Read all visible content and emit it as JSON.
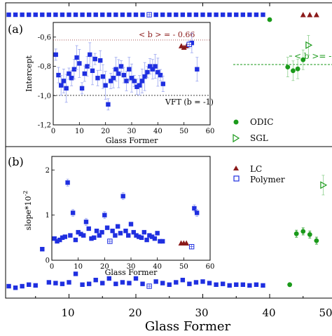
{
  "figure": {
    "xlabel": "Glass Former",
    "x_ticks": [
      "10",
      "20",
      "30",
      "40",
      "50"
    ],
    "colors": {
      "blue": "#1f2fe0",
      "green": "#1a9a1a",
      "darkred": "#8b1a1a",
      "black": "#000000",
      "lightblue_err": "#9aa5f0",
      "lightgreen_err": "#8fd18f"
    }
  },
  "chart_data": [
    {
      "id": "main-a",
      "type": "scatter",
      "panel_label": "(a)",
      "hline_label": "< b >= -",
      "legend": [
        {
          "name": "ODIC",
          "marker": "circle",
          "color": "#1a9a1a"
        },
        {
          "name": "SGL",
          "marker": "triangle-right-open",
          "color": "#1a9a1a"
        }
      ],
      "series": [
        {
          "name": "blue",
          "points": [
            [
              1,
              0
            ],
            [
              2,
              0
            ],
            [
              3,
              0
            ],
            [
              4,
              0
            ],
            [
              5,
              0
            ],
            [
              6,
              0
            ],
            [
              7,
              0
            ],
            [
              8,
              0
            ],
            [
              9,
              0
            ],
            [
              10,
              0
            ],
            [
              11,
              0
            ],
            [
              12,
              0
            ],
            [
              13,
              0
            ],
            [
              14,
              0
            ],
            [
              15,
              0
            ],
            [
              16,
              0
            ],
            [
              17,
              0
            ],
            [
              18,
              0
            ],
            [
              19,
              0
            ],
            [
              20,
              0
            ],
            [
              21,
              0
            ],
            [
              23,
              0
            ],
            [
              24,
              0
            ],
            [
              25,
              0
            ],
            [
              26,
              0
            ],
            [
              27,
              0
            ],
            [
              28,
              0
            ],
            [
              29,
              0
            ],
            [
              30,
              0
            ],
            [
              31,
              0
            ],
            [
              32,
              0
            ],
            [
              33,
              0
            ],
            [
              34,
              0
            ],
            [
              35,
              0
            ],
            [
              36,
              0
            ],
            [
              37,
              0
            ],
            [
              38,
              0
            ],
            [
              39,
              0
            ]
          ]
        },
        {
          "name": "polymer",
          "points": [
            [
              22,
              0
            ]
          ]
        },
        {
          "name": "lc",
          "points": [
            [
              45,
              0
            ],
            [
              46,
              0
            ],
            [
              47,
              0
            ]
          ]
        },
        {
          "name": "odic",
          "points": [
            [
              40,
              -0.6
            ],
            [
              42.7,
              -0.86
            ],
            [
              43.5,
              -0.88
            ],
            [
              44.2,
              -0.87
            ],
            [
              45,
              -0.82
            ]
          ]
        },
        {
          "name": "sgl",
          "points": [
            [
              45.8,
              -0.74
            ]
          ]
        }
      ]
    },
    {
      "id": "inset-a",
      "type": "scatter",
      "xlabel": "Glass Former",
      "ylabel": "Intercept",
      "xlim": [
        0,
        60
      ],
      "ylim": [
        -1.2,
        -0.5
      ],
      "x_ticks": [
        0,
        10,
        20,
        30,
        40,
        50,
        60
      ],
      "y_ticks": [
        "-0,6",
        "-0,8",
        "-1,0",
        "-1,2"
      ],
      "y_tick_values": [
        -0.6,
        -0.8,
        -1.0,
        -1.2
      ],
      "hlines": [
        {
          "y": -0.66,
          "label": "< b > = - 0.66",
          "color": "#8b1a1a"
        },
        {
          "y": -1.0,
          "label": "VFT (b = -1)",
          "color": "#000000"
        }
      ],
      "series": [
        {
          "name": "blue",
          "points": [
            [
              1,
              -0.72
            ],
            [
              2,
              -0.86
            ],
            [
              3,
              -0.93
            ],
            [
              4,
              -0.9
            ],
            [
              5,
              -0.95
            ],
            [
              6,
              -0.85
            ],
            [
              7,
              -0.88
            ],
            [
              8,
              -0.82
            ],
            [
              9,
              -0.74
            ],
            [
              10,
              -0.78
            ],
            [
              11,
              -0.95
            ],
            [
              12,
              -0.85
            ],
            [
              13,
              -0.8
            ],
            [
              14,
              -0.72
            ],
            [
              15,
              -0.83
            ],
            [
              16,
              -0.75
            ],
            [
              17,
              -0.88
            ],
            [
              18,
              -0.76
            ],
            [
              19,
              -0.87
            ],
            [
              20,
              -0.93
            ],
            [
              21,
              -1.06
            ],
            [
              22,
              -0.9
            ],
            [
              23,
              -0.88
            ],
            [
              24,
              -0.82
            ],
            [
              25,
              -0.85
            ],
            [
              26,
              -0.8
            ],
            [
              27,
              -0.86
            ],
            [
              28,
              -0.9
            ],
            [
              29,
              -0.82
            ],
            [
              30,
              -0.88
            ],
            [
              31,
              -0.9
            ],
            [
              32,
              -0.94
            ],
            [
              33,
              -0.93
            ],
            [
              34,
              -0.9
            ],
            [
              35,
              -0.87
            ],
            [
              36,
              -0.84
            ],
            [
              37,
              -0.8
            ],
            [
              38,
              -0.82
            ],
            [
              39,
              -0.8
            ],
            [
              40,
              -0.84
            ],
            [
              41,
              -0.86
            ],
            [
              42,
              -0.92
            ],
            [
              53,
              -0.64
            ],
            [
              55,
              -0.82
            ]
          ]
        },
        {
          "name": "lc",
          "points": [
            [
              49,
              -0.66
            ],
            [
              50,
              -0.67
            ],
            [
              51,
              -0.66
            ]
          ]
        },
        {
          "name": "polymer",
          "points": [
            [
              52,
              -0.65
            ]
          ]
        }
      ]
    },
    {
      "id": "main-b",
      "type": "scatter",
      "panel_label": "(b)",
      "legend": [
        {
          "name": "LC",
          "marker": "triangle-up",
          "color": "#8b1a1a"
        },
        {
          "name": "Polymer",
          "marker": "square-open",
          "color": "#1f2fe0"
        }
      ],
      "series": [
        {
          "name": "blue",
          "points": [
            [
              1,
              0.42
            ],
            [
              2,
              0.4
            ],
            [
              3,
              0.42
            ],
            [
              4,
              0.44
            ],
            [
              5,
              0.43
            ],
            [
              6,
              0.9
            ],
            [
              7,
              0.47
            ],
            [
              8,
              0.46
            ],
            [
              9,
              0.45
            ],
            [
              10,
              0.47
            ],
            [
              11,
              0.58
            ],
            [
              12,
              0.44
            ],
            [
              13,
              0.45
            ],
            [
              14,
              0.5
            ],
            [
              15,
              0.46
            ],
            [
              16,
              0.52
            ],
            [
              17,
              0.45
            ],
            [
              18,
              0.47
            ],
            [
              19,
              0.46
            ],
            [
              20,
              0.52
            ],
            [
              21,
              0.45
            ],
            [
              23,
              0.48
            ],
            [
              24,
              0.46
            ],
            [
              25,
              0.44
            ],
            [
              26,
              0.47
            ],
            [
              27,
              0.5
            ],
            [
              28,
              0.45
            ],
            [
              29,
              0.47
            ],
            [
              30,
              0.48
            ],
            [
              31,
              0.46
            ],
            [
              32,
              0.44
            ],
            [
              33,
              0.45
            ],
            [
              34,
              0.43
            ],
            [
              35,
              0.44
            ],
            [
              36,
              0.44
            ],
            [
              37,
              0.43
            ],
            [
              38,
              0.44
            ],
            [
              39,
              0.43
            ]
          ]
        },
        {
          "name": "polymer",
          "points": [
            [
              22,
              0.42
            ]
          ]
        },
        {
          "name": "odic",
          "points": [
            [
              43,
              0.44
            ],
            [
              44,
              1.1
            ],
            [
              45,
              1.13
            ],
            [
              46,
              1.09
            ],
            [
              47,
              1.01
            ]
          ]
        },
        {
          "name": "sgl",
          "points": [
            [
              48,
              1.73
            ]
          ]
        },
        {
          "name": "lc",
          "points": [
            [
              50,
              0.42
            ],
            [
              51,
              0.42
            ],
            [
              52,
              0.42
            ]
          ]
        }
      ]
    },
    {
      "id": "inset-b",
      "type": "scatter",
      "xlabel": "Glass Former",
      "ylabel": "slope*10",
      "ylabel_exponent": "-2",
      "xlim": [
        0,
        60
      ],
      "ylim": [
        0,
        2.3
      ],
      "x_ticks": [
        0,
        10,
        20,
        30,
        40,
        50,
        60
      ],
      "y_ticks": [
        0,
        1,
        2
      ],
      "series": [
        {
          "name": "blue",
          "points": [
            [
              1,
              0.48
            ],
            [
              2,
              0.42
            ],
            [
              3,
              0.45
            ],
            [
              4,
              0.5
            ],
            [
              5,
              0.52
            ],
            [
              6,
              1.72
            ],
            [
              7,
              0.55
            ],
            [
              8,
              1.05
            ],
            [
              9,
              0.45
            ],
            [
              10,
              0.62
            ],
            [
              11,
              0.58
            ],
            [
              12,
              0.55
            ],
            [
              13,
              0.85
            ],
            [
              14,
              0.7
            ],
            [
              15,
              0.48
            ],
            [
              16,
              0.5
            ],
            [
              17,
              0.65
            ],
            [
              18,
              0.55
            ],
            [
              19,
              0.62
            ],
            [
              20,
              1.0
            ],
            [
              21,
              0.72
            ],
            [
              23,
              0.65
            ],
            [
              24,
              0.55
            ],
            [
              25,
              0.75
            ],
            [
              26,
              0.6
            ],
            [
              27,
              1.42
            ],
            [
              28,
              0.65
            ],
            [
              29,
              0.55
            ],
            [
              30,
              0.8
            ],
            [
              31,
              0.62
            ],
            [
              32,
              0.55
            ],
            [
              33,
              0.52
            ],
            [
              34,
              0.5
            ],
            [
              35,
              0.62
            ],
            [
              36,
              0.45
            ],
            [
              37,
              0.55
            ],
            [
              38,
              0.52
            ],
            [
              39,
              0.48
            ],
            [
              40,
              0.6
            ],
            [
              41,
              0.42
            ],
            [
              42,
              0.42
            ],
            [
              54,
              1.15
            ],
            [
              55,
              1.05
            ]
          ]
        },
        {
          "name": "polymer",
          "points": [
            [
              22,
              0.42
            ],
            [
              53,
              0.3
            ]
          ]
        },
        {
          "name": "lc",
          "points": [
            [
              49,
              0.38
            ],
            [
              50,
              0.38
            ],
            [
              51,
              0.38
            ]
          ]
        }
      ]
    }
  ]
}
